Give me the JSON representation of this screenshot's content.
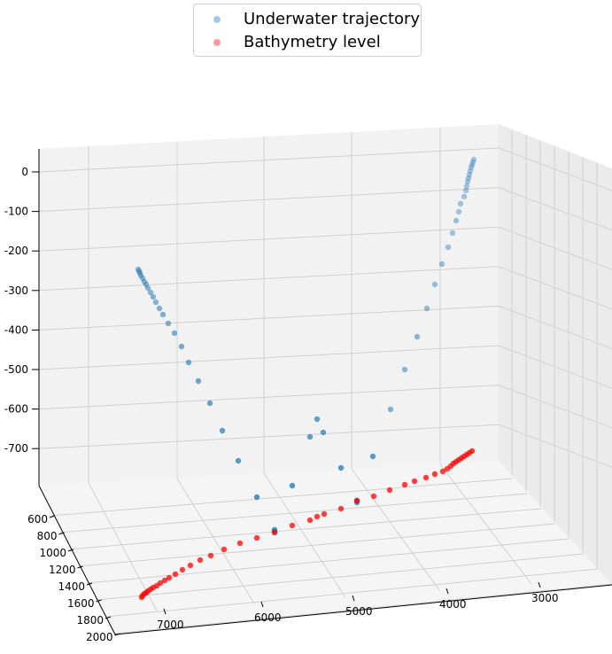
{
  "chart_data": {
    "type": "scatter",
    "projection": "3d",
    "title": "",
    "legend_placement": "top-center",
    "grid": true,
    "axes": {
      "x": {
        "label": "",
        "ticks": [
          7000,
          6000,
          5000,
          4000,
          3000
        ],
        "tick_labels": [
          "7000",
          "6000",
          "5000",
          "4000",
          "3000"
        ]
      },
      "y": {
        "label": "",
        "ticks": [
          600,
          800,
          1000,
          1200,
          1400,
          1600,
          1800,
          2000
        ],
        "tick_labels": [
          "600",
          "800",
          "1000",
          "1200",
          "1400",
          "1600",
          "1800",
          "2000"
        ]
      },
      "z": {
        "label": "",
        "ticks": [
          0,
          -100,
          -200,
          -300,
          -400,
          -500,
          -600,
          -700
        ],
        "tick_labels": [
          "0",
          "-100",
          "-200",
          "-300",
          "-400",
          "-500",
          "-600",
          "-700"
        ]
      }
    },
    "series": [
      {
        "name": "Underwater trajectory",
        "color": "#1f77b4",
        "screen_points": [
          [
            535,
            180
          ],
          [
            534,
            183
          ],
          [
            533,
            186
          ],
          [
            532,
            189
          ],
          [
            531,
            193
          ],
          [
            530,
            197
          ],
          [
            529,
            201
          ],
          [
            528,
            205
          ],
          [
            527,
            210
          ],
          [
            526,
            215
          ],
          [
            524,
            222
          ],
          [
            520,
            230
          ],
          [
            518,
            239
          ],
          [
            515,
            249
          ],
          [
            511,
            263
          ],
          [
            506,
            279
          ],
          [
            499,
            298
          ],
          [
            491,
            321
          ],
          [
            482,
            348
          ],
          [
            471,
            380
          ],
          [
            457,
            417
          ],
          [
            441,
            462
          ],
          [
            421,
            515
          ],
          [
            385,
            528
          ],
          [
            350,
            493
          ],
          [
            358,
            473
          ],
          [
            365,
            488
          ],
          [
            403,
            565
          ],
          [
            403,
            567
          ],
          [
            330,
            548
          ],
          [
            310,
            598
          ],
          [
            310,
            600
          ],
          [
            290,
            561
          ],
          [
            269,
            520
          ],
          [
            251,
            486
          ],
          [
            237,
            455
          ],
          [
            224,
            430
          ],
          [
            213,
            409
          ],
          [
            205,
            391
          ],
          [
            197,
            376
          ],
          [
            190,
            365
          ],
          [
            184,
            355
          ],
          [
            180,
            348
          ],
          [
            176,
            341
          ],
          [
            173,
            335
          ],
          [
            170,
            330
          ],
          [
            167,
            325
          ],
          [
            165,
            321
          ],
          [
            163,
            318
          ],
          [
            161,
            314
          ],
          [
            159,
            311
          ],
          [
            158,
            308
          ],
          [
            157,
            306
          ],
          [
            156,
            304
          ]
        ]
      },
      {
        "name": "Bathymetry level",
        "color": "#ff0000",
        "screen_points": [
          [
            533,
            509
          ],
          [
            530,
            511
          ],
          [
            527,
            513
          ],
          [
            524,
            515
          ],
          [
            521,
            517
          ],
          [
            518,
            519
          ],
          [
            515,
            521
          ],
          [
            512,
            523
          ],
          [
            509,
            526
          ],
          [
            505,
            529
          ],
          [
            500,
            532
          ],
          [
            491,
            535
          ],
          [
            481,
            539
          ],
          [
            468,
            543
          ],
          [
            457,
            547
          ],
          [
            440,
            553
          ],
          [
            422,
            560
          ],
          [
            403,
            565
          ],
          [
            385,
            574
          ],
          [
            366,
            580
          ],
          [
            358,
            583
          ],
          [
            350,
            587
          ],
          [
            330,
            593
          ],
          [
            310,
            601
          ],
          [
            290,
            607
          ],
          [
            271,
            613
          ],
          [
            253,
            620
          ],
          [
            238,
            627
          ],
          [
            226,
            632
          ],
          [
            215,
            638
          ],
          [
            206,
            643
          ],
          [
            198,
            648
          ],
          [
            191,
            652
          ],
          [
            186,
            655
          ],
          [
            181,
            658
          ],
          [
            177,
            661
          ],
          [
            173,
            663
          ],
          [
            170,
            665
          ],
          [
            167,
            667
          ],
          [
            165,
            669
          ],
          [
            163,
            670
          ],
          [
            161,
            672
          ],
          [
            160,
            674
          ]
        ]
      }
    ]
  }
}
